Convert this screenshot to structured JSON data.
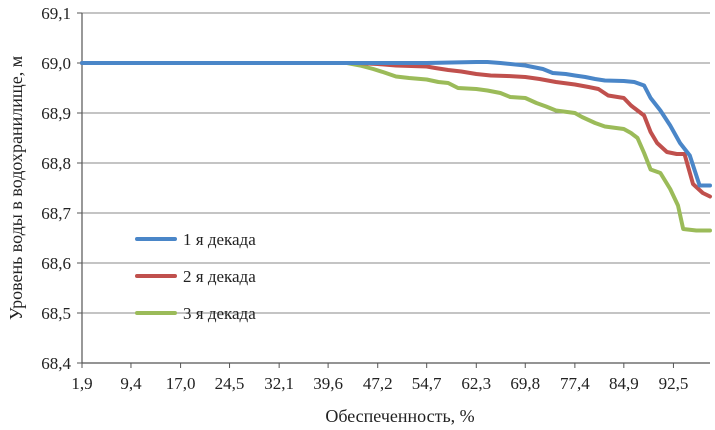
{
  "chart_data": {
    "type": "line",
    "xlabel": "Обеспеченность, %",
    "ylabel": "Уровень воды в водохранилище, м",
    "ylim": [
      68.4,
      69.1
    ],
    "yticks": [
      "68,4",
      "68,5",
      "68,6",
      "68,7",
      "68,8",
      "68,9",
      "69,0",
      "69,1"
    ],
    "xlim": [
      1.9,
      98.1
    ],
    "xticks": [
      "1,9",
      "9,4",
      "17,0",
      "24,5",
      "32,1",
      "39,6",
      "47,2",
      "54,7",
      "62,3",
      "69,8",
      "77,4",
      "84,9",
      "92,5"
    ],
    "grid": "horizontal",
    "legend_position": "center-left",
    "series": [
      {
        "name": "1 я декада",
        "color": "#4a86c8",
        "points": [
          [
            1.9,
            69.0
          ],
          [
            47.2,
            69.0
          ],
          [
            54.7,
            69.0
          ],
          [
            62.3,
            69.002
          ],
          [
            64.0,
            69.002
          ],
          [
            66.0,
            69.0
          ],
          [
            69.8,
            68.995
          ],
          [
            72.5,
            68.988
          ],
          [
            74.0,
            68.98
          ],
          [
            76.0,
            68.978
          ],
          [
            77.4,
            68.975
          ],
          [
            79.0,
            68.972
          ],
          [
            80.5,
            68.968
          ],
          [
            82.0,
            68.965
          ],
          [
            84.9,
            68.964
          ],
          [
            86.5,
            68.962
          ],
          [
            88.0,
            68.955
          ],
          [
            89.0,
            68.93
          ],
          [
            90.5,
            68.905
          ],
          [
            92.0,
            68.875
          ],
          [
            93.5,
            68.84
          ],
          [
            95.0,
            68.815
          ],
          [
            96.5,
            68.755
          ],
          [
            98.1,
            68.755
          ]
        ]
      },
      {
        "name": "2 я декада",
        "color": "#c0504d",
        "points": [
          [
            1.9,
            69.0
          ],
          [
            44.0,
            69.0
          ],
          [
            47.2,
            68.998
          ],
          [
            50.0,
            68.995
          ],
          [
            54.7,
            68.993
          ],
          [
            56.0,
            68.99
          ],
          [
            58.0,
            68.986
          ],
          [
            60.0,
            68.983
          ],
          [
            62.3,
            68.978
          ],
          [
            64.5,
            68.975
          ],
          [
            67.0,
            68.974
          ],
          [
            69.8,
            68.972
          ],
          [
            72.0,
            68.968
          ],
          [
            74.5,
            68.962
          ],
          [
            77.4,
            68.957
          ],
          [
            79.5,
            68.952
          ],
          [
            81.0,
            68.948
          ],
          [
            82.5,
            68.935
          ],
          [
            84.9,
            68.93
          ],
          [
            86.0,
            68.915
          ],
          [
            87.0,
            68.905
          ],
          [
            88.0,
            68.895
          ],
          [
            89.0,
            68.862
          ],
          [
            90.0,
            68.84
          ],
          [
            91.5,
            68.822
          ],
          [
            93.0,
            68.818
          ],
          [
            94.2,
            68.818
          ],
          [
            95.5,
            68.758
          ],
          [
            97.0,
            68.74
          ],
          [
            98.1,
            68.733
          ]
        ]
      },
      {
        "name": "3 я декада",
        "color": "#9bbb59",
        "points": [
          [
            1.9,
            69.0
          ],
          [
            42.5,
            69.0
          ],
          [
            44.5,
            68.995
          ],
          [
            46.5,
            68.988
          ],
          [
            48.0,
            68.982
          ],
          [
            50.0,
            68.973
          ],
          [
            52.0,
            68.97
          ],
          [
            54.7,
            68.967
          ],
          [
            56.5,
            68.962
          ],
          [
            58.0,
            68.96
          ],
          [
            59.5,
            68.95
          ],
          [
            62.3,
            68.948
          ],
          [
            64.0,
            68.945
          ],
          [
            66.0,
            68.94
          ],
          [
            67.5,
            68.932
          ],
          [
            69.8,
            68.93
          ],
          [
            71.5,
            68.92
          ],
          [
            73.0,
            68.913
          ],
          [
            74.5,
            68.905
          ],
          [
            77.4,
            68.9
          ],
          [
            78.5,
            68.892
          ],
          [
            80.5,
            68.88
          ],
          [
            82.0,
            68.873
          ],
          [
            84.9,
            68.868
          ],
          [
            86.0,
            68.86
          ],
          [
            87.0,
            68.85
          ],
          [
            88.0,
            68.82
          ],
          [
            89.0,
            68.787
          ],
          [
            90.5,
            68.78
          ],
          [
            92.0,
            68.748
          ],
          [
            93.2,
            68.715
          ],
          [
            94.0,
            68.668
          ],
          [
            96.0,
            68.665
          ],
          [
            98.1,
            68.665
          ]
        ]
      }
    ]
  }
}
